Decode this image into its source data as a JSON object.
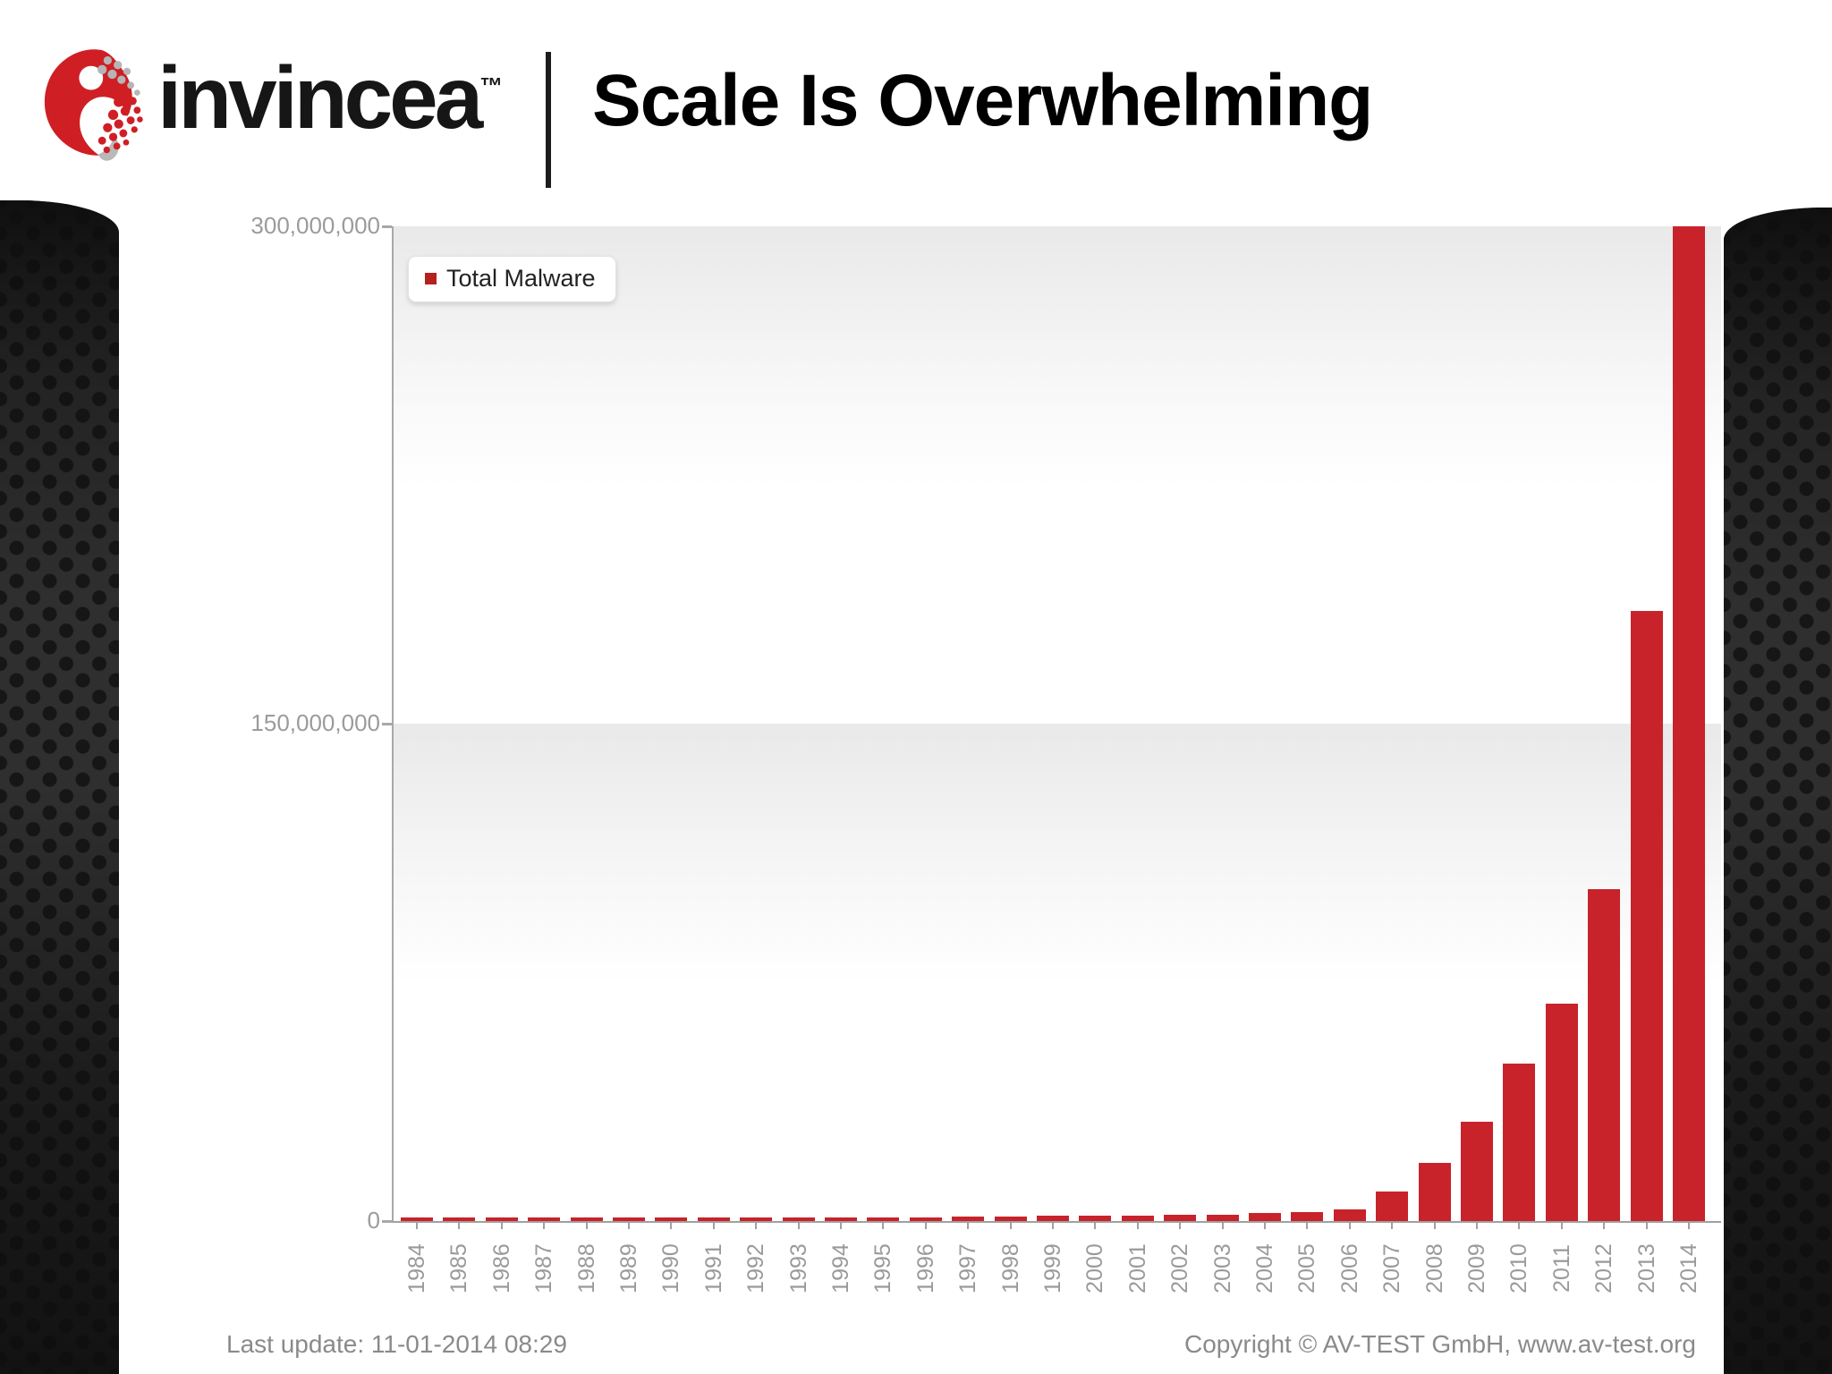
{
  "header": {
    "brand": "invincea",
    "trademark": "™",
    "title": "Scale Is Overwhelming"
  },
  "chart_data": {
    "type": "bar",
    "title": "",
    "xlabel": "",
    "ylabel": "",
    "legend_label": "Total Malware",
    "legend_position": "top-left",
    "grid": false,
    "ylim": [
      0,
      300000000
    ],
    "ytick_labels": [
      "300,000,000",
      "150,000,000",
      "0"
    ],
    "categories": [
      "1984",
      "1985",
      "1986",
      "1987",
      "1988",
      "1989",
      "1990",
      "1991",
      "1992",
      "1993",
      "1994",
      "1995",
      "1996",
      "1997",
      "1998",
      "1999",
      "2000",
      "2001",
      "2002",
      "2003",
      "2004",
      "2005",
      "2006",
      "2007",
      "2008",
      "2009",
      "2010",
      "2011",
      "2012",
      "2013",
      "2014"
    ],
    "series": [
      {
        "name": "Total Malware",
        "values": [
          20000,
          50000,
          100000,
          150000,
          200000,
          300000,
          400000,
          600000,
          800000,
          900000,
          1000000,
          1100000,
          1200000,
          1300000,
          1400000,
          1500000,
          1600000,
          1700000,
          1800000,
          2000000,
          2300000,
          2600000,
          3500000,
          9000000,
          17500000,
          30000000,
          47500000,
          65500000,
          100000000,
          184000000,
          300000000
        ]
      }
    ],
    "bar_color": "#c8232a"
  },
  "footer": {
    "last_update": "Last update: 11-01-2014 08:29",
    "copyright": "Copyright © AV-TEST GmbH, www.av-test.org"
  },
  "colors": {
    "accent_red": "#c8232a",
    "panel_dark": "#1a1a1a",
    "axis_gray": "#a8a8a8",
    "label_gray": "#9a9a9a"
  }
}
